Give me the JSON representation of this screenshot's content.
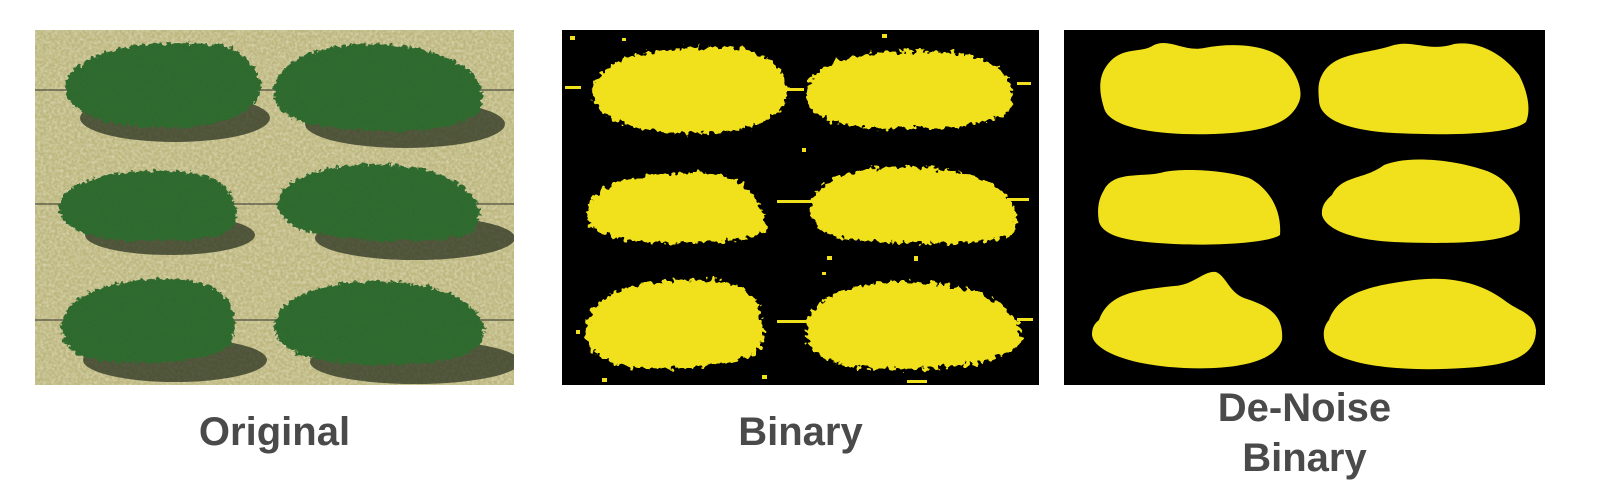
{
  "panels": [
    {
      "caption": "Original"
    },
    {
      "caption": "Binary"
    },
    {
      "caption_lines": [
        "De-Noise",
        "Binary"
      ]
    }
  ],
  "colors": {
    "soil": "#b7b27a",
    "foliage": "#2f5f2c",
    "foliage_dark": "#1b3a1a",
    "shadow": "#27301c",
    "mask_foreground": "#f0e11c",
    "mask_background": "#000000",
    "caption_text": "#4a4a4a"
  }
}
